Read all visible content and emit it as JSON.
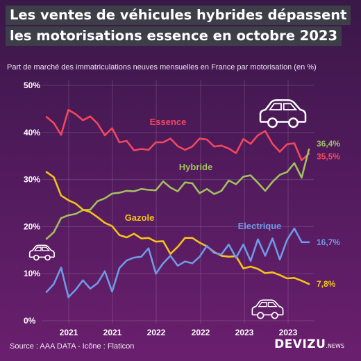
{
  "header": {
    "title_line1": "Les ventes de véhicules hybrides dépassent",
    "title_line2": "les motorisations essence en octobre 2023",
    "subtitle": "Part de marché des immatriculations neuves mensuelles en France par motorisation (en %)"
  },
  "footer": {
    "source": "Source : AAA DATA - Icône : Flaticon",
    "logo": "DEVIZU",
    "logo_suffix": ".NEWS"
  },
  "icons": [
    "car-icon",
    "car-icon",
    "car-icon"
  ],
  "chart_data": {
    "type": "line",
    "title": "Les ventes de véhicules hybrides dépassent les motorisations essence en octobre 2023",
    "subtitle": "Part de marché des immatriculations neuves mensuelles en France par motorisation (en %)",
    "ylim": [
      0,
      50
    ],
    "y_ticks": [
      "0%",
      "10%",
      "20%",
      "30%",
      "40%",
      "50%"
    ],
    "x_ticks": [
      "2021",
      "2021",
      "2022",
      "2022",
      "2023",
      "2023"
    ],
    "grid": true,
    "series": [
      {
        "name": "Essence",
        "color": "#f2475e",
        "end_label": "35,5%",
        "values": [
          43.3,
          42.0,
          39.5,
          44.8,
          43.9,
          42.6,
          43.4,
          41.9,
          39.4,
          40.9,
          37.9,
          38.2,
          36.2,
          36.5,
          36.3,
          37.9,
          37.9,
          38.7,
          37.1,
          36.3,
          37.0,
          38.7,
          38.5,
          37.0,
          37.2,
          36.6,
          35.6,
          38.6,
          37.6,
          39.4,
          40.3,
          37.6,
          35.9,
          37.5,
          37.7,
          34.1,
          35.5
        ]
      },
      {
        "name": "Hybride",
        "color": "#9fc15f",
        "end_label": "36,4%",
        "values": [
          17.4,
          18.8,
          21.8,
          22.4,
          22.7,
          23.5,
          23.6,
          25.4,
          26.0,
          27.0,
          27.2,
          27.6,
          27.5,
          28.0,
          27.8,
          27.7,
          29.6,
          28.3,
          27.5,
          29.4,
          29.2,
          27.1,
          28.0,
          26.9,
          27.6,
          29.8,
          29.0,
          30.6,
          30.9,
          29.3,
          27.6,
          29.5,
          31.0,
          31.6,
          33.5,
          30.4,
          36.4
        ]
      },
      {
        "name": "Gazole",
        "color": "#f4c316",
        "end_label": "7,8%",
        "values": [
          31.6,
          30.5,
          26.6,
          25.6,
          24.9,
          23.6,
          23.1,
          22.0,
          20.8,
          20.1,
          18.2,
          17.7,
          18.5,
          17.5,
          17.6,
          16.8,
          16.9,
          14.2,
          15.7,
          17.6,
          17.6,
          16.6,
          15.8,
          14.6,
          13.8,
          13.6,
          13.7,
          11.1,
          11.5,
          11.0,
          10.1,
          10.3,
          9.7,
          9.0,
          9.1,
          8.5,
          7.8
        ]
      },
      {
        "name": "Electrique",
        "color": "#6e9ae6",
        "end_label": "16,7%",
        "values": [
          6.1,
          7.8,
          11.3,
          5.0,
          6.6,
          8.6,
          6.8,
          8.0,
          10.5,
          6.2,
          11.2,
          12.8,
          13.4,
          13.6,
          15.4,
          10.0,
          12.2,
          13.8,
          11.7,
          12.6,
          12.2,
          13.6,
          15.9,
          14.4,
          14.1,
          16.2,
          13.4,
          16.2,
          12.7,
          17.3,
          13.8,
          17.5,
          13.0,
          17.2,
          19.6,
          16.7,
          16.7
        ]
      }
    ]
  }
}
